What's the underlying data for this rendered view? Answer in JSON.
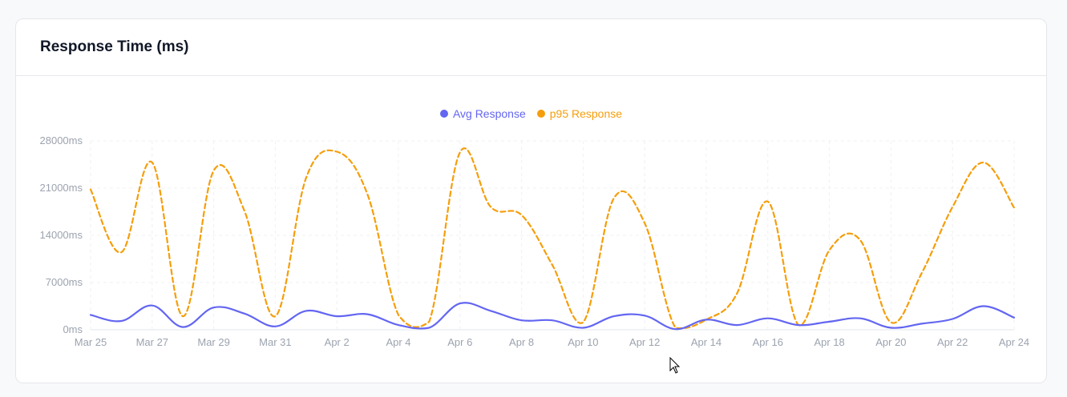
{
  "card": {
    "title": "Response Time (ms)"
  },
  "chart_data": {
    "type": "line",
    "title": "Response Time (ms)",
    "xlabel": "",
    "ylabel": "",
    "ylim": [
      0,
      28000
    ],
    "yticks": [
      "0ms",
      "7000ms",
      "14000ms",
      "21000ms",
      "28000ms"
    ],
    "xtick_labels": [
      "Mar 25",
      "Mar 27",
      "Mar 29",
      "Mar 31",
      "Apr 2",
      "Apr 4",
      "Apr 6",
      "Apr 8",
      "Apr 10",
      "Apr 12",
      "Apr 14",
      "Apr 16",
      "Apr 18",
      "Apr 20",
      "Apr 22",
      "Apr 24"
    ],
    "x": [
      "Mar 25",
      "Mar 26",
      "Mar 27",
      "Mar 28",
      "Mar 29",
      "Mar 30",
      "Mar 31",
      "Apr 1",
      "Apr 2",
      "Apr 3",
      "Apr 4",
      "Apr 5",
      "Apr 6",
      "Apr 7",
      "Apr 8",
      "Apr 9",
      "Apr 10",
      "Apr 11",
      "Apr 12",
      "Apr 13",
      "Apr 14",
      "Apr 15",
      "Apr 16",
      "Apr 17",
      "Apr 18",
      "Apr 19",
      "Apr 20",
      "Apr 21",
      "Apr 22",
      "Apr 23",
      "Apr 24"
    ],
    "grid": true,
    "legend_position": "top-center",
    "series": [
      {
        "name": "Avg Response",
        "color": "#6366f1",
        "style": "solid",
        "values": [
          2200,
          1300,
          3600,
          400,
          3300,
          2400,
          500,
          2800,
          2000,
          2300,
          700,
          300,
          3900,
          2800,
          1400,
          1400,
          300,
          2000,
          2100,
          100,
          1500,
          700,
          1700,
          700,
          1200,
          1700,
          300,
          900,
          1600,
          3500,
          1800
        ]
      },
      {
        "name": "p95 Response",
        "color": "#f59e0b",
        "style": "dashed",
        "values": [
          20800,
          11500,
          24800,
          2000,
          23600,
          17600,
          2000,
          22500,
          26400,
          20000,
          2200,
          1200,
          26300,
          18200,
          17000,
          9600,
          1100,
          19500,
          15800,
          300,
          1500,
          5400,
          19000,
          700,
          11800,
          13300,
          1100,
          8400,
          18200,
          24800,
          18100
        ]
      }
    ]
  }
}
